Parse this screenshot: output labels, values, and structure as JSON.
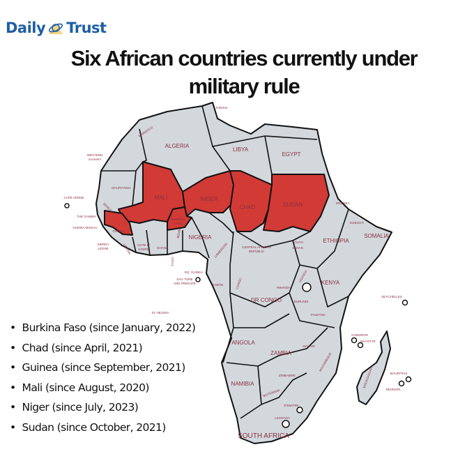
{
  "brand": {
    "name_part1": "Daily",
    "name_part2": "Trust"
  },
  "title": {
    "line1": "Six African countries currently under",
    "line2": "military rule"
  },
  "colors": {
    "military_rule": "#d23a36",
    "other": "#d3d8dd",
    "border": "#111111",
    "label": "#8a3040",
    "brand": "#1f5fa5"
  },
  "map": {
    "highlighted": [
      "MALI",
      "NIGER",
      "CHAD",
      "SUDAN",
      "BURKINA FASO",
      "GUINEA"
    ],
    "labels": {
      "tunisia": "TUNISIA",
      "morocco": "MOROCCO",
      "algeria": "ALGERIA",
      "libya": "LIBYA",
      "egypt": "EGYPT",
      "western_sahara_1": "WESTERN",
      "western_sahara_2": "SAHARA",
      "mauritania": "MAURITANIA",
      "mali": "MALI",
      "niger": "NIGER",
      "chad": "CHAD",
      "sudan": "SUDAN",
      "eritrea": "ERITREA",
      "djibouti": "DJIBOUTI",
      "somalia": "SOMALIA",
      "cape_verde": "CAPE VERDE",
      "senegal": "SENEGAL",
      "the_gambia": "THE GAMBIA",
      "guinea_bissau": "GUINEA-BISSAU",
      "guinea": "GUINEA",
      "burkina_1": "BURKINA",
      "burkina_2": "FASO",
      "sierra_leone_1": "SIERRA",
      "sierra_leone_2": "LEONE",
      "liberia": "LIBERIA",
      "cote_1": "COTE D'",
      "cote_2": "IVOIRE",
      "ghana": "GHANA",
      "togo": "TOGO",
      "benin": "BENIN",
      "nigeria": "NIGERIA",
      "cameroon": "CAMEROON",
      "car_1": "CENTRAL AFRICAN",
      "car_2": "REPUBLIC",
      "south_sudan_1": "SOUTH",
      "south_sudan_2": "SUDAN",
      "ethiopia": "ETHIOPIA",
      "eq_guinea": "EQ. GUINEA",
      "sao_tome_1": "SAO TOME",
      "sao_tome_2": "AND PRINCIPE",
      "gabon": "GABON",
      "congo": "CONGO",
      "uganda": "UGANDA",
      "kenya": "KENYA",
      "rwanda": "RWANDA",
      "burundi": "BURUNDI",
      "dr_congo": "DR CONGO",
      "seychelles": "SEYCHELLES",
      "tanzania": "TANZANIA",
      "comoros": "COMOROS",
      "mayotte": "MAYOTTE",
      "angola": "ANGOLA",
      "malawi": "MALAWI",
      "zambia": "ZAMBIA",
      "mozambique": "MOZAMBIQUE",
      "madagascar": "MADAGASCAR",
      "zimbabwe": "ZIMBABWE",
      "mauritius": "MAURITIUS",
      "reunion": "REUNION",
      "namibia": "NAMIBIA",
      "botswana": "BOTSWANA",
      "eswatini": "ESWATINI",
      "lesotho": "LESOTHO",
      "south_africa": "SOUTH AFRICA",
      "st_helena": "ST HELENA"
    }
  },
  "list": [
    "Burkina Faso (since January, 2022)",
    "Chad (since April, 2021)",
    "Guinea (since September, 2021)",
    "Mali (since August, 2020)",
    "Niger (since July, 2023)",
    "Sudan (since October, 2021)"
  ]
}
